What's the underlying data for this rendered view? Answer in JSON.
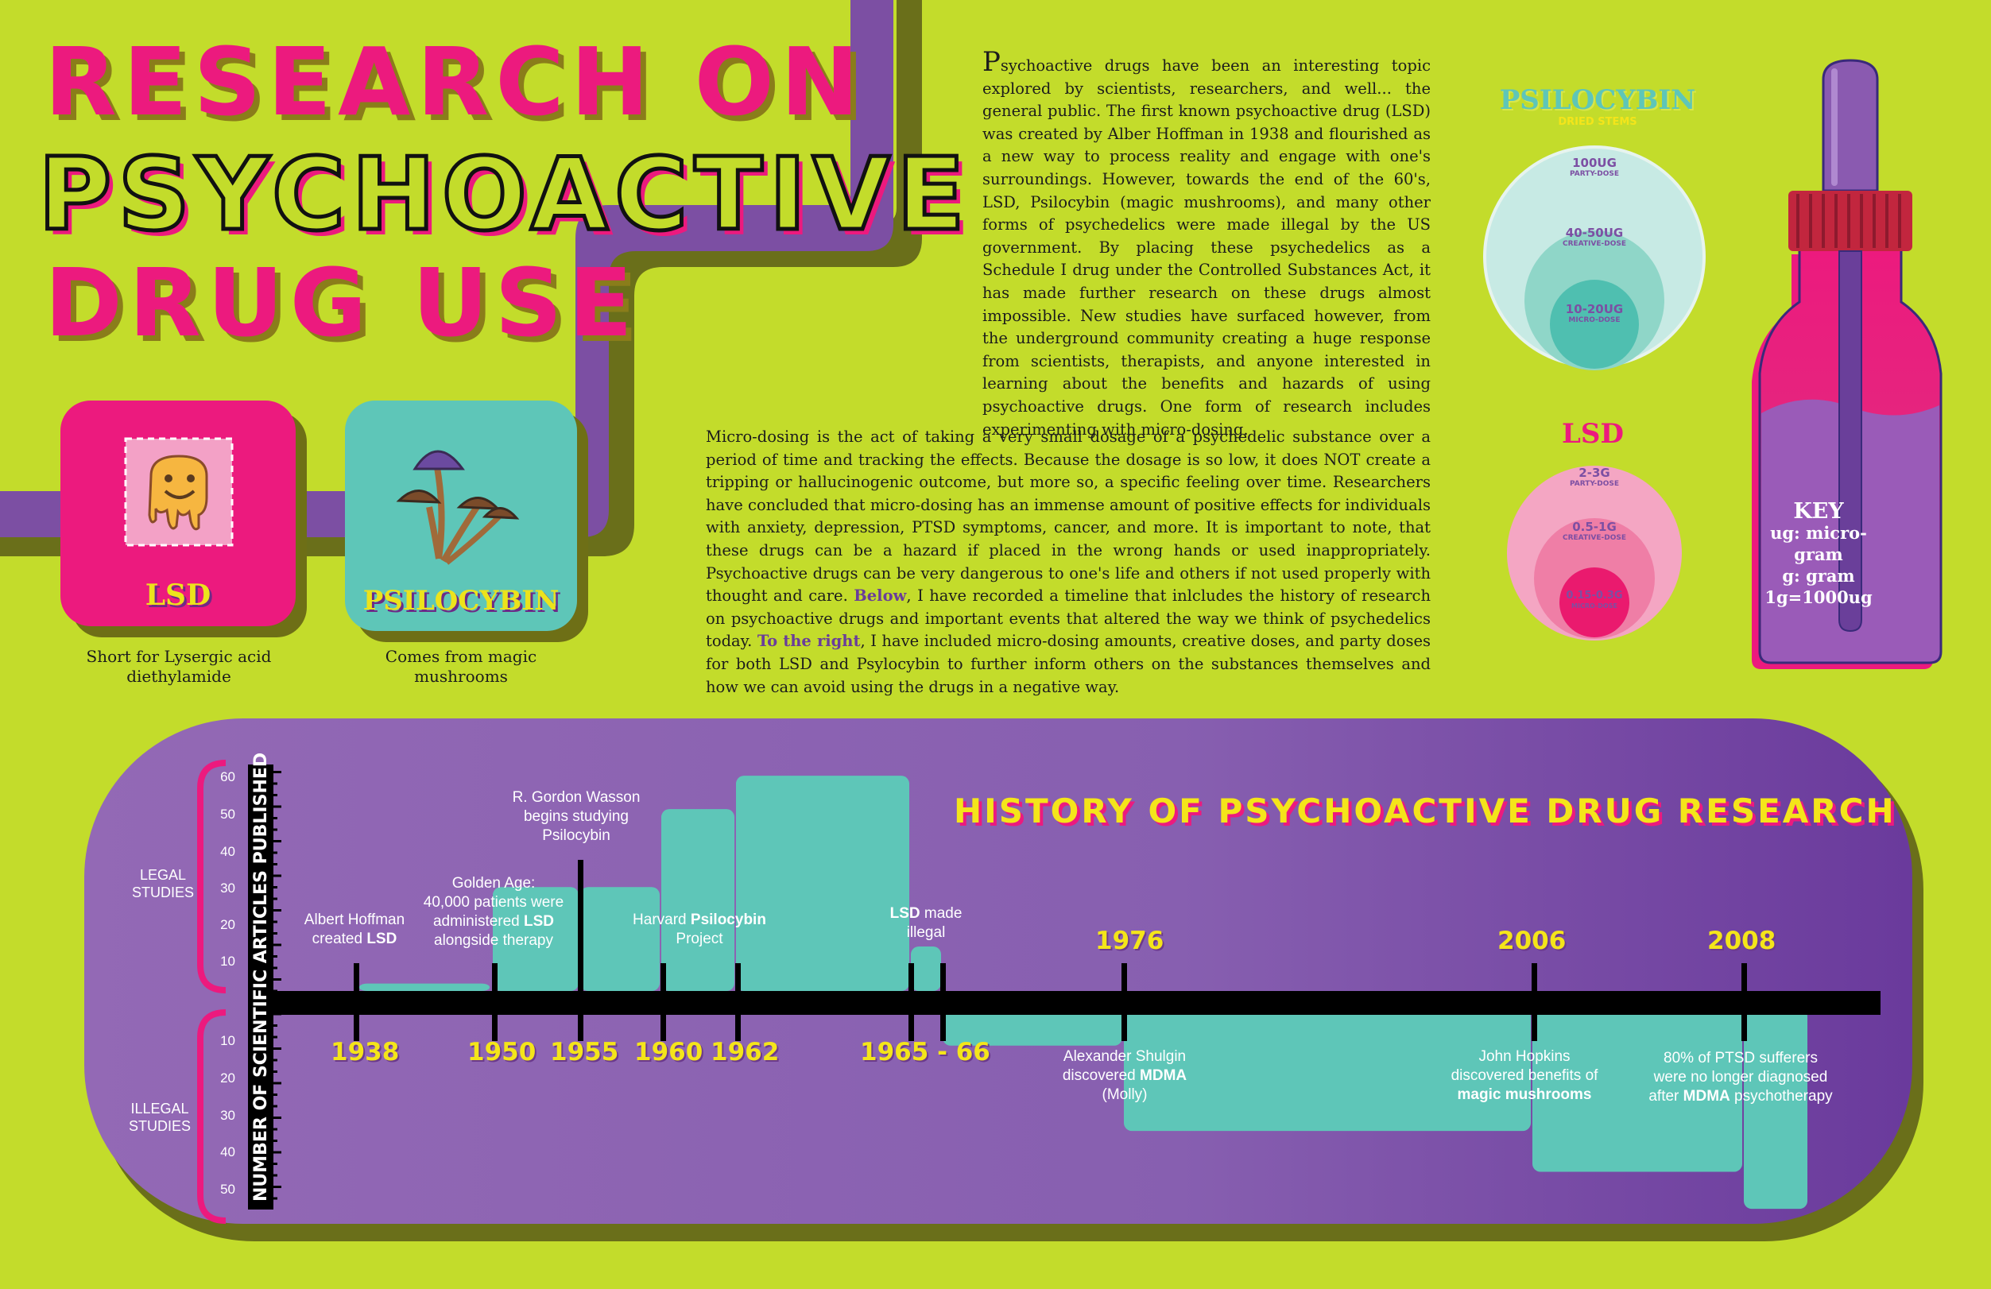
{
  "title": {
    "line1": "RESEARCH ON",
    "line2": "PSYCHOACTIVE",
    "line3": "DRUG USE"
  },
  "intro": {
    "drop_cap": "P",
    "paragraph1_rest": "sychoactive drugs have been an interesting topic explored by scientists, researchers, and well... the general public. The first known psychoactive drug (LSD) was created by Alber Hoffman in 1938 and flourished as a new way to process reality and engage with one's surroundings. However, towards the end of the 60's, LSD, Psilocybin (magic mushrooms), and many other forms of psychedelics were made illegal by the US government. By placing these psychedelics as a Schedule I drug under the Controlled Substances Act, it has made further research on these drugs almost impossible. New studies have surfaced however, from the underground community creating a huge response from scientists, therapists, and anyone interested in learning about the benefits and hazards of using psychoactive drugs. One form of research includes experimenting with micro-dosing.",
    "paragraph2_a": "Micro-dosing is the act of taking a very small dosage of a psychedelic substance over a period of time and tracking the effects. Because the dosage is so low, it does NOT create a tripping or hallucinogenic outcome, but more so, a specific feeling over time. Researchers have concluded that micro-dosing has an immense amount of positive effects for individuals with anxiety, depression, PTSD symptoms, cancer, and more. It is important to note, that these drugs can be a hazard if placed in the wrong hands or used inappropriately. Psychoactive drugs can be very dangerous to one's life and others if not used properly with thought and care.",
    "highlight1": "Below",
    "paragraph2_b": ", I have recorded a timeline that inlcludes the history of research on psychoactive drugs and important events that altered the way we think of psychedelics today.",
    "highlight2": "To the right",
    "paragraph2_c": ", I have included micro-dosing amounts, creative doses, and party doses for both LSD and Psylocybin to further inform others on the substances themselves and how we can avoid using the drugs in a negative way."
  },
  "cards": {
    "lsd": {
      "label": "LSD",
      "caption_line1": "Short for Lysergic acid",
      "caption_line2": "diethylamide",
      "color": "#ec1a7e"
    },
    "psilocybin": {
      "label": "PSILOCYBIN",
      "caption_line1": "Comes from magic",
      "caption_line2": "mushrooms",
      "color": "#5ec6b8"
    }
  },
  "psilocybin_doses": {
    "title": "PSILOCYBIN",
    "subtitle": "DRIED STEMS",
    "party": {
      "amount": "100UG",
      "label": "PARTY-DOSE"
    },
    "creative": {
      "amount": "40-50UG",
      "label": "CREATIVE-DOSE"
    },
    "micro": {
      "amount": "10-20UG",
      "label": "MICRO-DOSE"
    }
  },
  "lsd_doses": {
    "title": "LSD",
    "party": {
      "amount": "2-3G",
      "label": "PARTY-DOSE"
    },
    "creative": {
      "amount": "0.5-1G",
      "label": "CREATIVE-DOSE"
    },
    "micro": {
      "amount": "0.15-0.3G",
      "label": "MICRO-DOSE"
    }
  },
  "key": {
    "title": "KEY",
    "line1": "ug: micro-gram",
    "line2": "g: gram",
    "line3": "1g=1000ug"
  },
  "timeline": {
    "heading": "HISTORY OF PSYCHOACTIVE DRUG RESEARCH",
    "axis_title": "NUMBER OF SCIENTIFIC ARTICLES PUBLISHED",
    "legal_label_1": "LEGAL",
    "legal_label_2": "STUDIES",
    "illegal_label_1": "ILLEGAL",
    "illegal_label_2": "STUDIES",
    "y_ticks_legal": [
      "60",
      "50",
      "40",
      "30",
      "20",
      "10"
    ],
    "y_ticks_illegal": [
      "10",
      "20",
      "30",
      "40",
      "50"
    ],
    "years": [
      "1938",
      "1950",
      "1955",
      "1960",
      "1962",
      "1965 - 66",
      "1976",
      "2006",
      "2008"
    ],
    "events": {
      "e1938_a": "Albert Hoffman",
      "e1938_b": "created ",
      "e1938_bold": "LSD",
      "e1950_a": "Golden Age:",
      "e1950_b": "40,000 patients were",
      "e1950_c": "administered ",
      "e1950_bold": "LSD",
      "e1950_d": "alongside therapy",
      "e1955_a": "R. Gordon Wasson",
      "e1955_b": "begins studying",
      "e1955_c": "Psilocybin",
      "e1960_a": "Harvard ",
      "e1960_bold": "Psilocybin",
      "e1960_b": "Project",
      "e1965_bold": "LSD",
      "e1965_a": " made",
      "e1965_b": "illegal",
      "e1976_a": "Alexander Shulgin",
      "e1976_b": "discovered ",
      "e1976_bold": "MDMA",
      "e1976_c": "(Molly)",
      "e2006_a": "John Hopkins",
      "e2006_b": "discovered benefits of",
      "e2006_bold": "magic mushrooms",
      "e2008_a": "80% of PTSD sufferers",
      "e2008_b": "were no longer diagnosed",
      "e2008_c": "after ",
      "e2008_bold": "MDMA",
      "e2008_d": " psychotherapy"
    },
    "legal_articles": [
      {
        "period": "1938-1950",
        "value": 2
      },
      {
        "period": "1950-1955",
        "value": 28
      },
      {
        "period": "1955-1960",
        "value": 28
      },
      {
        "period": "1960-1962",
        "value": 49
      },
      {
        "period": "1962-1965",
        "value": 58
      },
      {
        "period": "1965-1966",
        "value": 12
      }
    ],
    "illegal_articles": [
      {
        "period": "1966-1976",
        "value": 10
      },
      {
        "period": "1976-2006",
        "value": 33
      },
      {
        "period": "2006-2008",
        "value": 44
      },
      {
        "period": "2008+",
        "value": 54
      }
    ]
  },
  "colors": {
    "background": "#c3dc2b",
    "purple": "#7c4fa3",
    "pink": "#ec1a7e",
    "teal": "#5ec6b8",
    "yellow": "#f4e51a"
  }
}
